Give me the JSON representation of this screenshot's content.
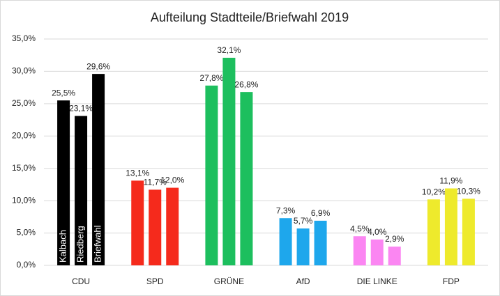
{
  "chart_data": {
    "type": "bar",
    "title": "Aufteilung Stadtteile/Briefwahl 2019",
    "categories": [
      "CDU",
      "SPD",
      "GRÜNE",
      "AfD",
      "DIE LINKE",
      "FDP"
    ],
    "category_colors": [
      "#000000",
      "#f52a1c",
      "#1dbf5e",
      "#1ea7ec",
      "#fb86f2",
      "#eeea2c"
    ],
    "series": [
      {
        "name": "Kalbach",
        "values": [
          25.5,
          13.1,
          27.8,
          7.3,
          4.5,
          10.2
        ],
        "value_labels": [
          "25,5%",
          "13,1%",
          "27,8%",
          "7,3%",
          "4,5%",
          "10,2%"
        ]
      },
      {
        "name": "Riedberg",
        "values": [
          23.1,
          11.7,
          32.1,
          5.7,
          4.0,
          11.9
        ],
        "value_labels": [
          "23,1%",
          "11,7%",
          "32,1%",
          "5,7%",
          "4,0%",
          "11,9%"
        ]
      },
      {
        "name": "Briefwahl",
        "values": [
          29.6,
          12.0,
          26.8,
          6.9,
          2.9,
          10.3
        ],
        "value_labels": [
          "29,6%",
          "12,0%",
          "26,8%",
          "6,9%",
          "2,9%",
          "10,3%"
        ]
      }
    ],
    "ylim": [
      0,
      35
    ],
    "yticks": [
      {
        "value": 0,
        "label": "0,0%"
      },
      {
        "value": 5,
        "label": "5,0%"
      },
      {
        "value": 10,
        "label": "10,0%"
      },
      {
        "value": 15,
        "label": "15,0%"
      },
      {
        "value": 20,
        "label": "20,0%"
      },
      {
        "value": 25,
        "label": "25,0%"
      },
      {
        "value": 30,
        "label": "30,0%"
      },
      {
        "value": 35,
        "label": "35,0%"
      }
    ],
    "grid": true
  }
}
